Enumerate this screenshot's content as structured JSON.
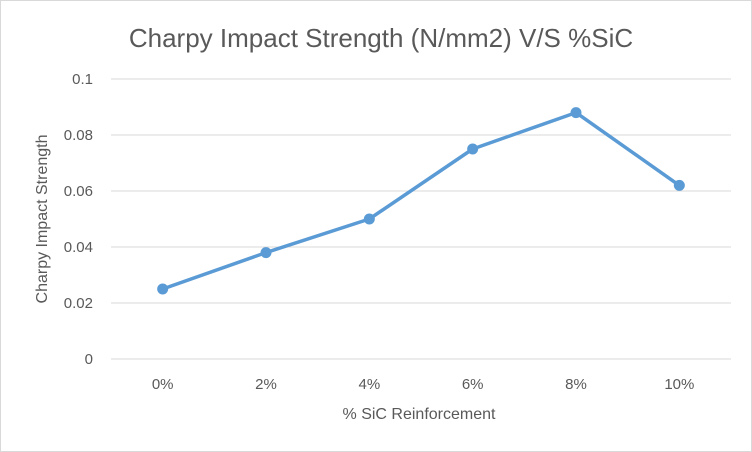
{
  "chart_data": {
    "type": "line",
    "title": "Charpy Impact Strength (N/mm2) V/S %SiC",
    "xlabel": "% SiC Reinforcement",
    "ylabel": "Charpy Impact Strength",
    "categories": [
      "0%",
      "2%",
      "4%",
      "6%",
      "8%",
      "10%"
    ],
    "series": [
      {
        "name": "Charpy Impact Strength",
        "values": [
          0.025,
          0.038,
          0.05,
          0.075,
          0.088,
          0.062
        ]
      }
    ],
    "ylim": [
      0,
      0.1
    ],
    "yticks": [
      "0",
      "0.02",
      "0.04",
      "0.06",
      "0.08",
      "0.1"
    ],
    "grid": true,
    "legend": "none",
    "colors": {
      "series": "#5b9bd5",
      "grid": "#d9d9d9",
      "text": "#595959"
    }
  }
}
